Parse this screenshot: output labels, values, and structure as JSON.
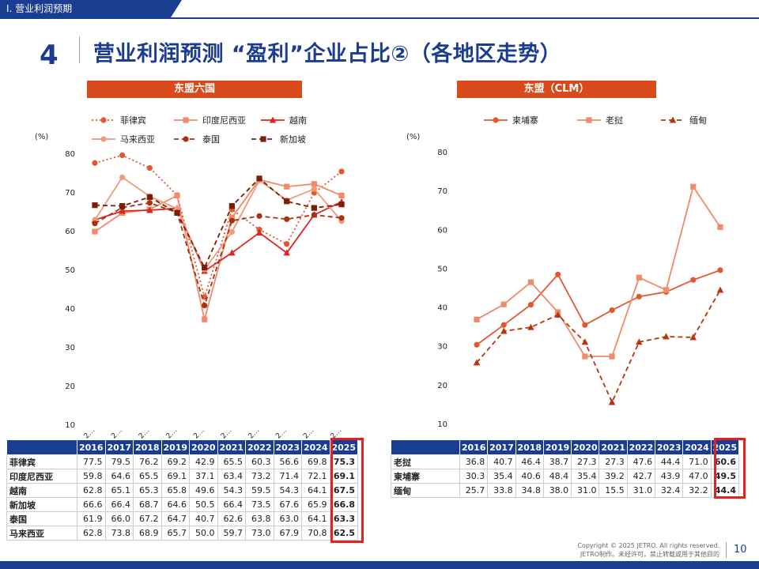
{
  "header": {
    "section": "Ⅰ. 营业利润预期",
    "page_number": "4",
    "title": "营业利润预测  “盈利”企业占比②（各地区走势）"
  },
  "footer": {
    "copyright_line1": "Copyright © 2025 JETRO. All rights reserved.",
    "copyright_line2": "JETRO制作。未经许可，禁止转载或用于其他目的",
    "page": "10"
  },
  "chart_data": [
    {
      "type": "line",
      "title": "东盟六国",
      "ylabel": "(%)",
      "ylim": [
        10,
        80
      ],
      "yticks": [
        10,
        20,
        30,
        40,
        50,
        60,
        70,
        80
      ],
      "categories": [
        "2016",
        "2017",
        "2018",
        "2019",
        "2020",
        "2021",
        "2022",
        "2023",
        "2024",
        "2025"
      ],
      "category_tick_label": "2…",
      "legend_position": "top",
      "series": [
        {
          "name": "菲律宾",
          "color": "#e4572e",
          "style": "dotted",
          "marker": "circle",
          "values": [
            77.5,
            79.5,
            76.2,
            69.2,
            42.9,
            65.5,
            60.3,
            56.6,
            69.8,
            75.3
          ]
        },
        {
          "name": "印度尼西亚",
          "color": "#f08a6a",
          "style": "solid",
          "marker": "square",
          "values": [
            59.8,
            64.6,
            65.5,
            69.1,
            37.1,
            63.4,
            73.2,
            71.4,
            72.1,
            69.1
          ]
        },
        {
          "name": "越南",
          "color": "#e0231e",
          "style": "solid",
          "marker": "triangle",
          "values": [
            62.8,
            65.1,
            65.3,
            65.8,
            49.6,
            54.3,
            59.5,
            54.3,
            64.1,
            67.5
          ]
        },
        {
          "name": "马来西亚",
          "color": "#f09a7c",
          "style": "solid",
          "marker": "circle",
          "values": [
            62.8,
            73.8,
            68.9,
            65.7,
            50.0,
            59.7,
            73.0,
            67.9,
            70.8,
            62.5
          ]
        },
        {
          "name": "泰国",
          "color": "#a8320f",
          "style": "dashed",
          "marker": "circle",
          "values": [
            61.9,
            66.0,
            67.2,
            64.7,
            40.7,
            62.6,
            63.8,
            63.0,
            64.1,
            63.3
          ]
        },
        {
          "name": "新加坡",
          "color": "#7a1e08",
          "style": "dashed",
          "marker": "square",
          "values": [
            66.6,
            66.4,
            68.7,
            64.6,
            50.5,
            66.4,
            73.5,
            67.6,
            65.9,
            66.8
          ]
        }
      ],
      "table": {
        "header": [
          "2016",
          "2017",
          "2018",
          "2019",
          "2020",
          "2021",
          "2022",
          "2023",
          "2024",
          "2025"
        ],
        "rows": [
          {
            "label": "菲律宾",
            "cells": [
              "77.5",
              "79.5",
              "76.2",
              "69.2",
              "42.9",
              "65.5",
              "60.3",
              "56.6",
              "69.8",
              "75.3"
            ]
          },
          {
            "label": "印度尼西亚",
            "cells": [
              "59.8",
              "64.6",
              "65.5",
              "69.1",
              "37.1",
              "63.4",
              "73.2",
              "71.4",
              "72.1",
              "69.1"
            ]
          },
          {
            "label": "越南",
            "cells": [
              "62.8",
              "65.1",
              "65.3",
              "65.8",
              "49.6",
              "54.3",
              "59.5",
              "54.3",
              "64.1",
              "67.5"
            ]
          },
          {
            "label": "新加坡",
            "cells": [
              "66.6",
              "66.4",
              "68.7",
              "64.6",
              "50.5",
              "66.4",
              "73.5",
              "67.6",
              "65.9",
              "66.8"
            ]
          },
          {
            "label": "泰国",
            "cells": [
              "61.9",
              "66.0",
              "67.2",
              "64.7",
              "40.7",
              "62.6",
              "63.8",
              "63.0",
              "64.1",
              "63.3"
            ]
          },
          {
            "label": "马来西亚",
            "cells": [
              "62.8",
              "73.8",
              "68.9",
              "65.7",
              "50.0",
              "59.7",
              "73.0",
              "67.9",
              "70.8",
              "62.5"
            ]
          }
        ]
      }
    },
    {
      "type": "line",
      "title": "东盟（CLM）",
      "ylabel": "(%)",
      "ylim": [
        10,
        80
      ],
      "yticks": [
        10,
        20,
        30,
        40,
        50,
        60,
        70,
        80
      ],
      "categories": [
        "2016",
        "2017",
        "2018",
        "2019",
        "2020",
        "2021",
        "2022",
        "2023",
        "2024",
        "2025"
      ],
      "legend_position": "top",
      "series": [
        {
          "name": "柬埔寨",
          "color": "#e4572e",
          "style": "solid",
          "marker": "circle",
          "values": [
            30.3,
            35.4,
            40.6,
            48.4,
            35.4,
            39.2,
            42.7,
            43.9,
            47.0,
            49.5
          ]
        },
        {
          "name": "老挝",
          "color": "#f08a6a",
          "style": "solid",
          "marker": "square",
          "values": [
            36.8,
            40.7,
            46.4,
            38.7,
            27.3,
            27.3,
            47.6,
            44.4,
            71.0,
            60.6
          ]
        },
        {
          "name": "缅甸",
          "color": "#b7340f",
          "style": "dashed",
          "marker": "triangle",
          "values": [
            25.7,
            33.8,
            34.8,
            38.0,
            31.0,
            15.5,
            31.0,
            32.4,
            32.2,
            44.4
          ]
        }
      ],
      "table": {
        "header": [
          "2016",
          "2017",
          "2018",
          "2019",
          "2020",
          "2021",
          "2022",
          "2023",
          "2024",
          "2025"
        ],
        "rows": [
          {
            "label": "老挝",
            "cells": [
              "36.8",
              "40.7",
              "46.4",
              "38.7",
              "27.3",
              "27.3",
              "47.6",
              "44.4",
              "71.0",
              "60.6"
            ]
          },
          {
            "label": "柬埔寨",
            "cells": [
              "30.3",
              "35.4",
              "40.6",
              "48.4",
              "35.4",
              "39.2",
              "42.7",
              "43.9",
              "47.0",
              "49.5"
            ]
          },
          {
            "label": "缅甸",
            "cells": [
              "25.7",
              "33.8",
              "34.8",
              "38.0",
              "31.0",
              "15.5",
              "31.0",
              "32.4",
              "32.2",
              "44.4"
            ]
          }
        ]
      }
    }
  ]
}
